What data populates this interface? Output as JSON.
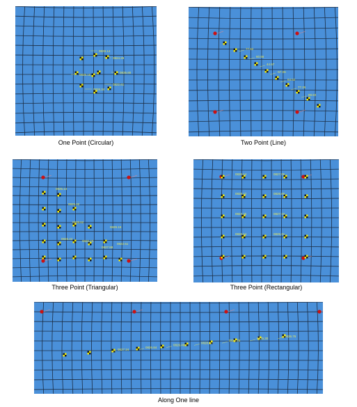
{
  "colors": {
    "background": "#4a90d9",
    "grid": "#1c2d44",
    "marker_fill": "#f2e600",
    "marker_dark": "#1a1a1a",
    "red_point": "#cc1111",
    "label": "#e8e85a"
  },
  "panels": [
    {
      "id": "circular",
      "caption": "One Point (Circular)",
      "labels": [
        "0829.14",
        "0824.29",
        "0835.80",
        "0826.15",
        "0826.34",
        "0822.61"
      ]
    },
    {
      "id": "line",
      "caption": "Two Point (Line)",
      "labels": [
        "77.62",
        "60.66",
        "44.67",
        "-57.06",
        "64.52",
        "77.26",
        "88.83"
      ]
    },
    {
      "id": "triangular",
      "caption": "Three Point (Triangular)",
      "labels": [
        "0825.14",
        "0826.42",
        "0828.62",
        "0826.44",
        "0826.23",
        "0829.19",
        "0827.88",
        "0822.51"
      ]
    },
    {
      "id": "rectangular",
      "caption": "Three Point (Rectangular)",
      "labels": [
        "0826.14",
        "0827.06",
        "0828.42",
        "0826.88",
        "0824.35",
        "0827.19",
        "0826.54",
        "0825.31"
      ]
    },
    {
      "id": "one-line",
      "caption": "Along One line",
      "labels": [
        "0827.34",
        "0826.84",
        "0826.48",
        "0828.07",
        "0823.29",
        "0825.30",
        "0826.76"
      ]
    }
  ]
}
